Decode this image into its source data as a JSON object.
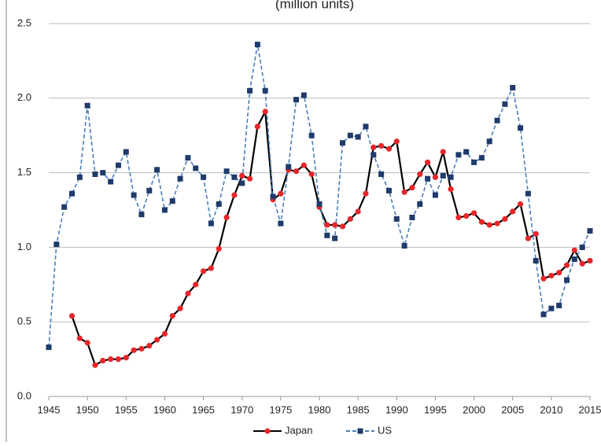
{
  "chart_data": {
    "type": "line",
    "title": "(million units)",
    "x": [
      1945,
      1946,
      1947,
      1948,
      1949,
      1950,
      1951,
      1952,
      1953,
      1954,
      1955,
      1956,
      1957,
      1958,
      1959,
      1960,
      1961,
      1962,
      1963,
      1964,
      1965,
      1966,
      1967,
      1968,
      1969,
      1970,
      1971,
      1972,
      1973,
      1974,
      1975,
      1976,
      1977,
      1978,
      1979,
      1980,
      1981,
      1982,
      1983,
      1984,
      1985,
      1986,
      1987,
      1988,
      1989,
      1990,
      1991,
      1992,
      1993,
      1994,
      1995,
      1996,
      1997,
      1998,
      1999,
      2000,
      2001,
      2002,
      2003,
      2004,
      2005,
      2006,
      2007,
      2008,
      2009,
      2010,
      2011,
      2012,
      2013,
      2014,
      2015
    ],
    "series": [
      {
        "name": "Japan",
        "color": "#000000",
        "marker_color": "#e8262a",
        "marker": "circle",
        "dashed": false,
        "values": [
          null,
          null,
          null,
          0.54,
          0.39,
          0.36,
          0.21,
          0.24,
          0.25,
          0.25,
          0.26,
          0.31,
          0.32,
          0.34,
          0.38,
          0.42,
          0.54,
          0.59,
          0.69,
          0.75,
          0.84,
          0.86,
          0.99,
          1.2,
          1.35,
          1.48,
          1.46,
          1.81,
          1.91,
          1.32,
          1.36,
          1.52,
          1.51,
          1.55,
          1.49,
          1.27,
          1.15,
          1.15,
          1.14,
          1.19,
          1.24,
          1.36,
          1.67,
          1.68,
          1.66,
          1.71,
          1.37,
          1.4,
          1.49,
          1.57,
          1.47,
          1.64,
          1.39,
          1.2,
          1.21,
          1.23,
          1.17,
          1.15,
          1.16,
          1.19,
          1.24,
          1.29,
          1.06,
          1.09,
          0.79,
          0.81,
          0.83,
          0.88,
          0.98,
          0.89,
          0.91
        ]
      },
      {
        "name": "US",
        "color": "#4a7ebb",
        "marker_color": "#1f3b6b",
        "marker": "square",
        "dashed": true,
        "values": [
          0.33,
          1.02,
          1.27,
          1.36,
          1.47,
          1.95,
          1.49,
          1.5,
          1.44,
          1.55,
          1.64,
          1.35,
          1.22,
          1.38,
          1.52,
          1.25,
          1.31,
          1.46,
          1.6,
          1.53,
          1.47,
          1.16,
          1.29,
          1.51,
          1.47,
          1.43,
          2.05,
          2.36,
          2.05,
          1.34,
          1.16,
          1.54,
          1.99,
          2.02,
          1.75,
          1.29,
          1.08,
          1.06,
          1.7,
          1.75,
          1.74,
          1.81,
          1.62,
          1.49,
          1.38,
          1.19,
          1.01,
          1.2,
          1.29,
          1.46,
          1.35,
          1.48,
          1.47,
          1.62,
          1.64,
          1.57,
          1.6,
          1.71,
          1.85,
          1.96,
          2.07,
          1.8,
          1.36,
          0.91,
          0.55,
          0.59,
          0.61,
          0.78,
          0.92,
          1.0,
          1.11
        ]
      }
    ],
    "xlim": [
      1945,
      2015
    ],
    "xticks": [
      1945,
      1950,
      1955,
      1960,
      1965,
      1970,
      1975,
      1980,
      1985,
      1990,
      1995,
      2000,
      2005,
      2010,
      2015
    ],
    "ylim": [
      0,
      2.5
    ],
    "yticks": [
      {
        "value": 0,
        "label": "0.0"
      },
      0.5,
      {
        "value": 1,
        "label": "1.0"
      },
      1.5,
      {
        "value": 2,
        "label": "2.0"
      },
      2.5
    ],
    "grid": true,
    "legend": "bottom"
  }
}
